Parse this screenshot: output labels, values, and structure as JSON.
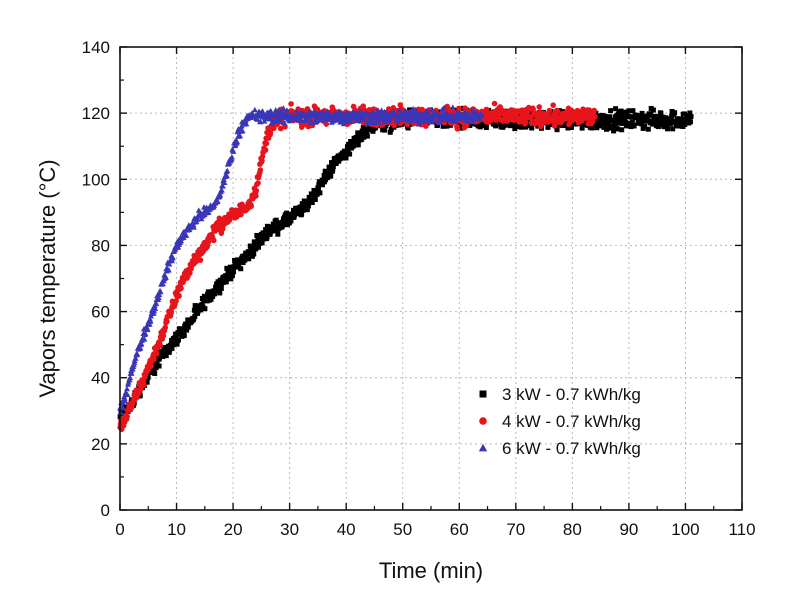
{
  "chart_data": {
    "type": "scatter",
    "title": "",
    "xlabel": "Time (min)",
    "ylabel": "Vapors temperature (°C)",
    "xlim": [
      0,
      110
    ],
    "ylim": [
      0,
      140
    ],
    "xticks": [
      0,
      10,
      20,
      30,
      40,
      50,
      60,
      70,
      80,
      90,
      100,
      110
    ],
    "yticks": [
      0,
      20,
      40,
      60,
      80,
      100,
      120,
      140
    ],
    "grid": true,
    "legend_position": "lower-right",
    "series": [
      {
        "name": "3 kW - 0.7 kWh/kg",
        "color": "#000000",
        "marker": "square",
        "x_end": 101,
        "noise": 2.2,
        "points": [
          [
            0,
            28
          ],
          [
            2,
            32
          ],
          [
            4,
            38
          ],
          [
            6,
            43
          ],
          [
            8,
            48
          ],
          [
            10,
            52
          ],
          [
            12,
            56
          ],
          [
            15,
            63
          ],
          [
            18,
            69
          ],
          [
            20,
            73
          ],
          [
            23,
            78
          ],
          [
            26,
            84
          ],
          [
            28,
            86
          ],
          [
            30,
            88
          ],
          [
            33,
            92
          ],
          [
            35,
            97
          ],
          [
            38,
            105
          ],
          [
            41,
            110
          ],
          [
            43,
            114
          ],
          [
            45,
            117
          ],
          [
            50,
            118
          ],
          [
            60,
            118
          ],
          [
            70,
            118
          ],
          [
            80,
            118
          ],
          [
            90,
            118
          ],
          [
            101,
            118
          ]
        ]
      },
      {
        "name": "4 kW - 0.7 kWh/kg",
        "color": "#e8141b",
        "marker": "circle",
        "x_end": 84,
        "noise": 2.2,
        "points": [
          [
            0,
            25
          ],
          [
            1,
            28
          ],
          [
            3,
            35
          ],
          [
            5,
            43
          ],
          [
            7,
            51
          ],
          [
            9,
            60
          ],
          [
            11,
            69
          ],
          [
            13,
            75
          ],
          [
            15,
            80
          ],
          [
            17,
            85
          ],
          [
            19,
            88
          ],
          [
            21,
            90
          ],
          [
            23,
            93
          ],
          [
            24,
            97
          ],
          [
            25,
            105
          ],
          [
            26,
            113
          ],
          [
            27,
            117
          ],
          [
            29,
            119
          ],
          [
            84,
            119
          ]
        ]
      },
      {
        "name": "6 kW - 0.7 kWh/kg",
        "color": "#3a36b8",
        "marker": "triangle",
        "x_end": 64,
        "noise": 1.6,
        "points": [
          [
            0,
            30
          ],
          [
            1,
            34
          ],
          [
            2,
            42
          ],
          [
            4,
            52
          ],
          [
            6,
            61
          ],
          [
            8,
            71
          ],
          [
            10,
            80
          ],
          [
            12,
            85
          ],
          [
            14,
            89
          ],
          [
            16,
            91
          ],
          [
            17,
            93
          ],
          [
            18,
            97
          ],
          [
            19,
            103
          ],
          [
            20,
            109
          ],
          [
            21,
            114
          ],
          [
            22,
            118
          ],
          [
            24,
            119
          ],
          [
            64,
            119
          ]
        ]
      }
    ]
  }
}
